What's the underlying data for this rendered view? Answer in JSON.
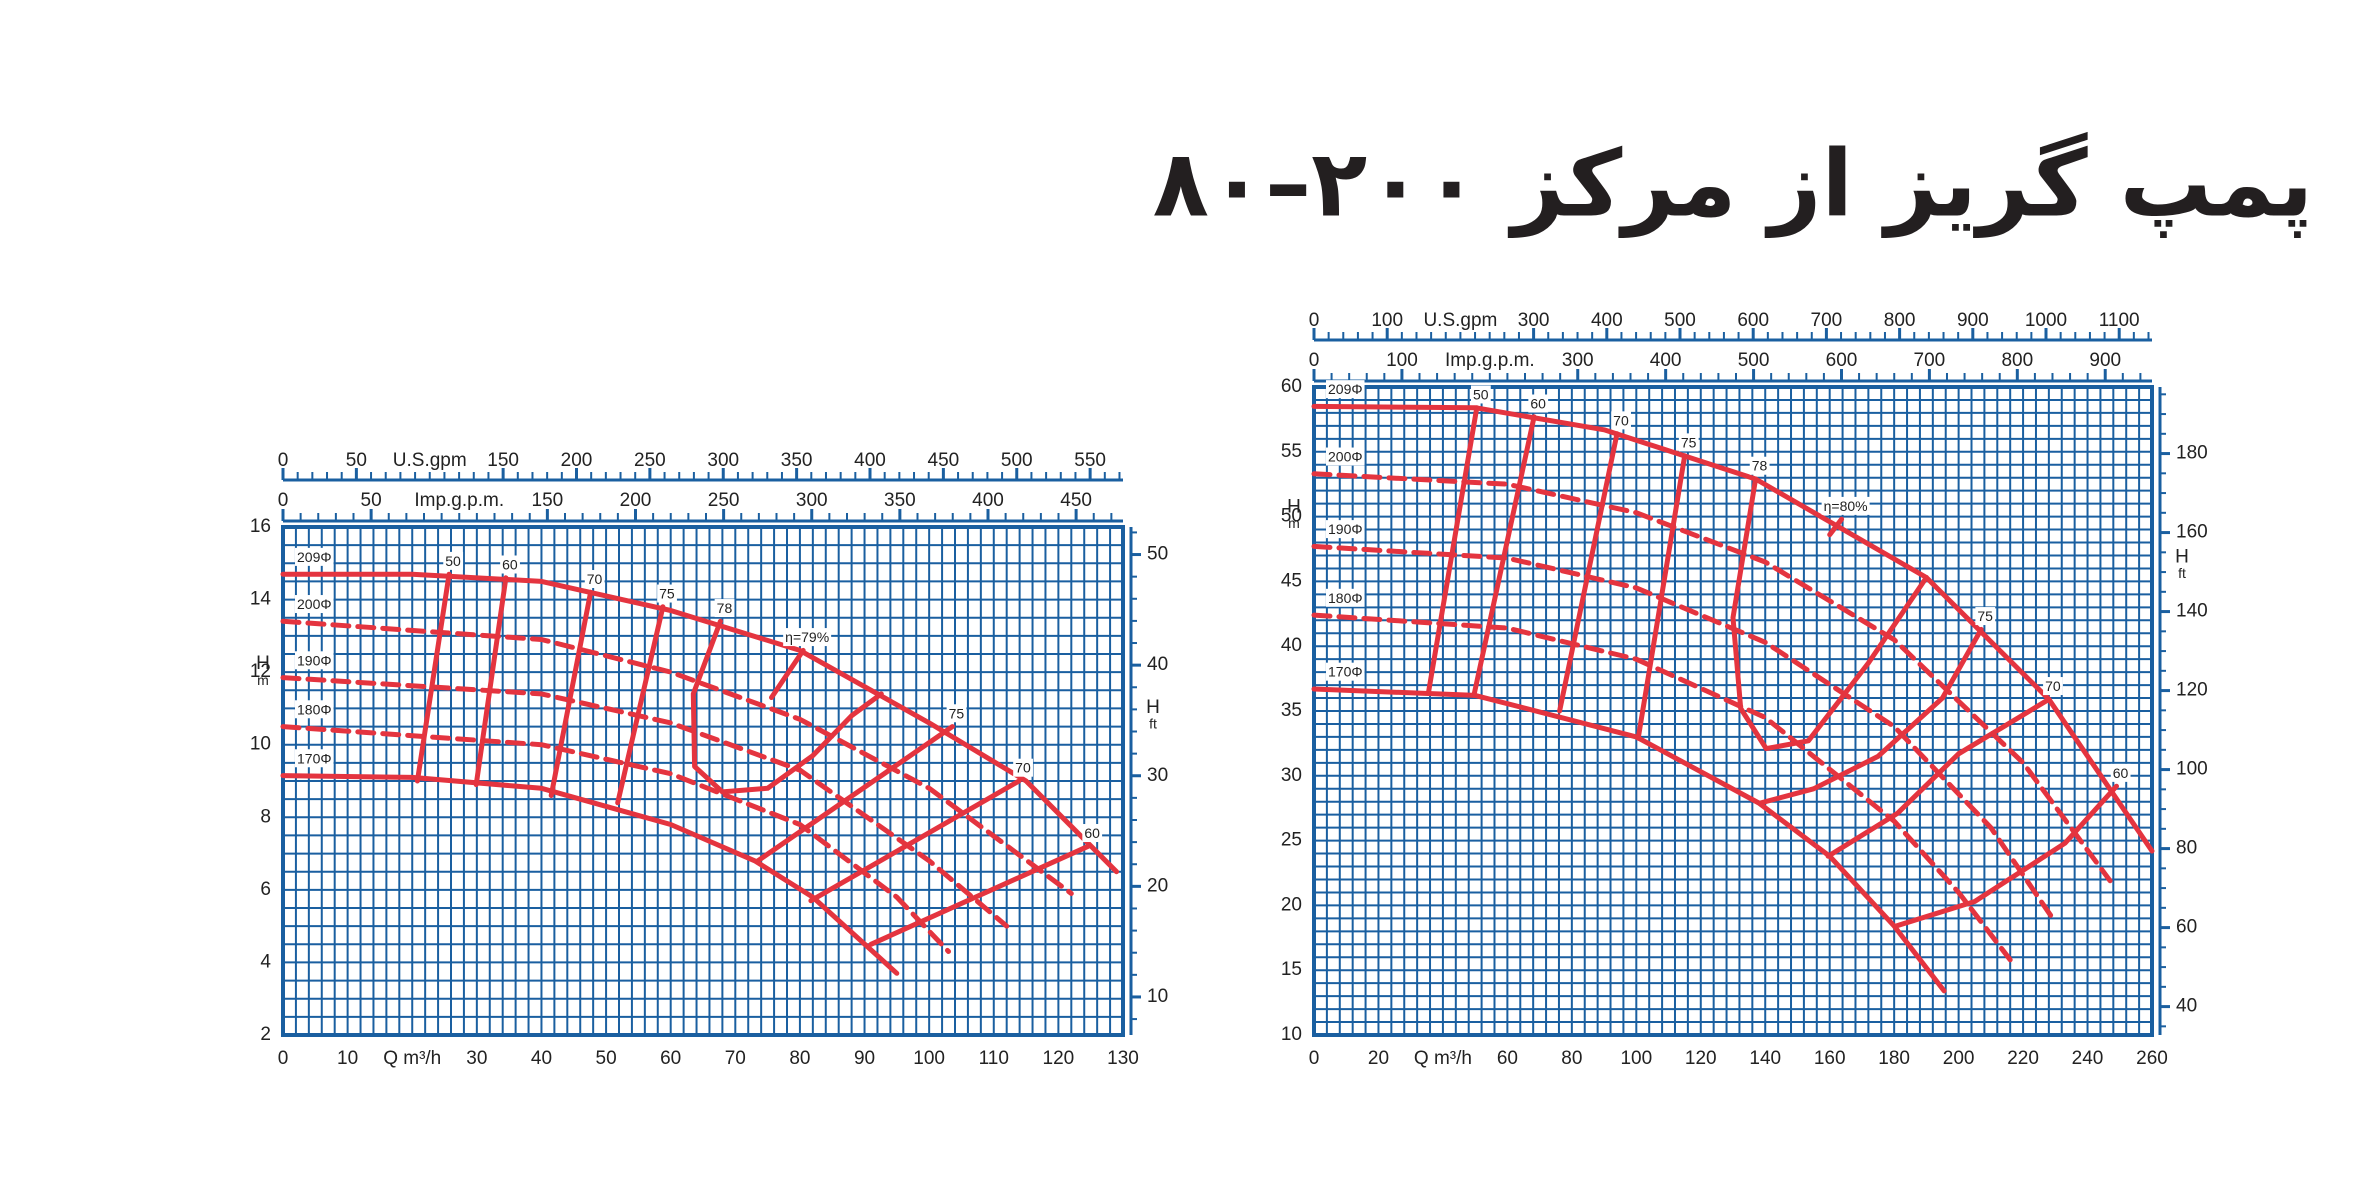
{
  "title": "پمپ گریز از مرکز ۲۰۰–۸۰",
  "chart_data": [
    {
      "type": "line",
      "xlabel": "Q m³/h",
      "ylabel": "H",
      "yunit": "m",
      "y2label": "H",
      "y2unit": "ft",
      "xlim": [
        0,
        130
      ],
      "xticks": [
        0,
        10,
        30,
        40,
        50,
        60,
        70,
        80,
        90,
        100,
        110,
        120,
        130
      ],
      "ylim": [
        2,
        16
      ],
      "yticks": [
        2,
        4,
        6,
        8,
        10,
        12,
        14,
        16
      ],
      "y2lim": [
        6.56,
        52.49
      ],
      "y2ticks": [
        10,
        20,
        30,
        40,
        50
      ],
      "y2minor": 2,
      "top_axes": [
        {
          "label": "U.S.gpm",
          "lim": [
            0,
            572.4
          ],
          "ticks": [
            0,
            50,
            150,
            200,
            250,
            300,
            350,
            400,
            450,
            500,
            550
          ],
          "minor_step": 10
        },
        {
          "label": "Imp.g.p.m.",
          "lim": [
            0,
            476.6
          ],
          "ticks": [
            0,
            50,
            150,
            200,
            250,
            300,
            350,
            400,
            450
          ],
          "minor_step": 10
        }
      ],
      "grid_step": [
        2,
        0.5
      ],
      "grid_color": "#1a5fa0",
      "series": [
        {
          "name": "209Φ",
          "color": "#e4343f",
          "dashed": false,
          "x": [
            0,
            20,
            40,
            60,
            80,
            100,
            115,
            129
          ],
          "values": [
            14.7,
            14.7,
            14.5,
            13.7,
            12.6,
            10.6,
            9.0,
            6.5
          ]
        },
        {
          "name": "200Φ",
          "color": "#e4343f",
          "dashed": true,
          "x": [
            0,
            40,
            60,
            80,
            100,
            122
          ],
          "values": [
            13.4,
            12.9,
            12.0,
            10.7,
            8.8,
            5.9
          ]
        },
        {
          "name": "190Φ",
          "color": "#e4343f",
          "dashed": true,
          "x": [
            0,
            40,
            60,
            80,
            100,
            112
          ],
          "values": [
            11.85,
            11.4,
            10.6,
            9.3,
            6.8,
            5.0
          ]
        },
        {
          "name": "180Φ",
          "color": "#e4343f",
          "dashed": true,
          "x": [
            0,
            40,
            60,
            80,
            95,
            103
          ],
          "values": [
            10.5,
            10.0,
            9.2,
            7.8,
            5.8,
            4.3
          ]
        },
        {
          "name": "170Φ",
          "color": "#e4343f",
          "dashed": false,
          "x": [
            0,
            20,
            40,
            60,
            73,
            82,
            95
          ],
          "values": [
            9.15,
            9.1,
            8.8,
            7.8,
            6.8,
            5.8,
            3.7
          ]
        }
      ],
      "efficiency": [
        {
          "name": "50",
          "x": [
            25.7,
            20.8
          ],
          "values": [
            14.7,
            9.0
          ]
        },
        {
          "name": "60",
          "x": [
            34.5,
            29.9
          ],
          "values": [
            14.6,
            8.9
          ]
        },
        {
          "name": "70",
          "x": [
            47.6,
            41.5
          ],
          "values": [
            14.2,
            8.6
          ]
        },
        {
          "name": "75",
          "x": [
            58.8,
            51.8
          ],
          "values": [
            13.8,
            8.4
          ]
        },
        {
          "name": "78",
          "x": [
            67.7,
            63.5,
            63.7,
            68,
            75,
            82,
            88,
            92.6
          ],
          "values": [
            13.4,
            11.4,
            9.4,
            8.7,
            8.8,
            9.7,
            10.8,
            11.4
          ]
        },
        {
          "name": "η=79%",
          "x": [
            80.5,
            75.6
          ],
          "values": [
            12.6,
            11.3
          ]
        },
        {
          "name": "75",
          "x": [
            103.6,
            73.5
          ],
          "values": [
            10.5,
            6.8
          ]
        },
        {
          "name": "70",
          "x": [
            113.9,
            81.7
          ],
          "values": [
            9.0,
            5.7
          ]
        },
        {
          "name": "60",
          "x": [
            124.6,
            91
          ],
          "values": [
            7.2,
            4.5
          ]
        }
      ]
    },
    {
      "type": "line",
      "xlabel": "Q m³/h",
      "ylabel": "H",
      "yunit": "m",
      "y2label": "H",
      "y2unit": "ft",
      "xlim": [
        0,
        260
      ],
      "xticks": [
        0,
        20,
        60,
        80,
        100,
        120,
        140,
        160,
        180,
        200,
        220,
        240,
        260
      ],
      "ylim": [
        10,
        60
      ],
      "yticks": [
        10,
        15,
        20,
        25,
        30,
        35,
        40,
        45,
        50,
        55,
        60
      ],
      "y2lim": [
        32.81,
        196.85
      ],
      "y2ticks": [
        40,
        60,
        80,
        100,
        120,
        140,
        160,
        180
      ],
      "y2minor": 5,
      "top_axes": [
        {
          "label": "U.S.gpm",
          "lim": [
            0,
            1144.8
          ],
          "ticks": [
            0,
            100,
            300,
            400,
            500,
            600,
            700,
            800,
            900,
            1000,
            1100
          ],
          "minor_step": 20
        },
        {
          "label": "Imp.g.p.m.",
          "lim": [
            0,
            953.2
          ],
          "ticks": [
            0,
            100,
            300,
            400,
            500,
            600,
            700,
            800,
            900
          ],
          "minor_step": 20
        }
      ],
      "grid_step": [
        4,
        1
      ],
      "grid_color": "#1a5fa0",
      "series": [
        {
          "name": "209Φ",
          "color": "#e4343f",
          "dashed": false,
          "x": [
            0,
            50,
            90,
            137,
            190,
            228,
            260
          ],
          "values": [
            58.5,
            58.4,
            56.7,
            52.9,
            45.3,
            35.9,
            24.2
          ]
        },
        {
          "name": "200Φ",
          "color": "#e4343f",
          "dashed": true,
          "x": [
            0,
            60,
            100,
            140,
            180,
            220,
            247
          ],
          "values": [
            53.3,
            52.5,
            50.3,
            46.5,
            40.5,
            31,
            21.9
          ]
        },
        {
          "name": "190Φ",
          "color": "#e4343f",
          "dashed": true,
          "x": [
            0,
            60,
            100,
            140,
            180,
            210,
            230
          ],
          "values": [
            47.7,
            46.8,
            44.5,
            40.3,
            33.8,
            26,
            18.7
          ]
        },
        {
          "name": "180Φ",
          "color": "#e4343f",
          "dashed": true,
          "x": [
            0,
            60,
            100,
            140,
            180,
            200,
            216
          ],
          "values": [
            42.4,
            41.4,
            39,
            34.5,
            26.5,
            21,
            15.8
          ]
        },
        {
          "name": "170Φ",
          "color": "#e4343f",
          "dashed": false,
          "x": [
            0,
            50,
            100,
            138,
            160,
            180,
            195.5
          ],
          "values": [
            36.7,
            36.2,
            33.0,
            27.9,
            23.8,
            18.4,
            13.4
          ]
        }
      ],
      "efficiency": [
        {
          "name": "50",
          "x": [
            50.5,
            35.5
          ],
          "values": [
            58.4,
            36.4
          ]
        },
        {
          "name": "60",
          "x": [
            68.3,
            49.6
          ],
          "values": [
            57.7,
            36.2
          ]
        },
        {
          "name": "70",
          "x": [
            94,
            76.2
          ],
          "values": [
            56.4,
            35.0
          ]
        },
        {
          "name": "75",
          "x": [
            115,
            100.6
          ],
          "values": [
            54.7,
            32.9
          ]
        },
        {
          "name": "78",
          "x": [
            137,
            130,
            132.4,
            140.3,
            153.4,
            172,
            190
          ],
          "values": [
            52.9,
            42.2,
            35.2,
            32.1,
            32.7,
            38.7,
            45.3
          ]
        },
        {
          "name": "η=80%",
          "x": [
            163.7,
            160
          ],
          "values": [
            49.8,
            48.6
          ]
        },
        {
          "name": "75",
          "x": [
            207,
            195,
            175,
            155,
            138.5
          ],
          "values": [
            41.3,
            36,
            31.5,
            29,
            27.9
          ]
        },
        {
          "name": "70",
          "x": [
            228,
            200,
            181,
            159.5
          ],
          "values": [
            35.9,
            31.7,
            27.1,
            23.8
          ]
        },
        {
          "name": "60",
          "x": [
            249,
            233,
            205,
            180.5
          ],
          "values": [
            29.2,
            24.8,
            20.3,
            18.4
          ]
        }
      ]
    }
  ]
}
